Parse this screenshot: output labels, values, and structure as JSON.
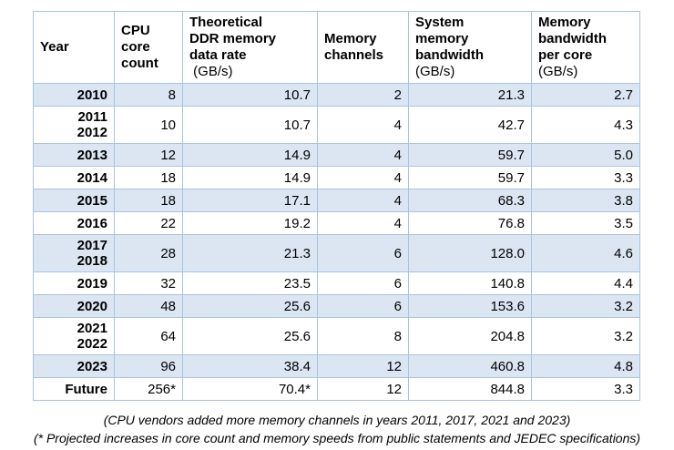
{
  "table": {
    "columns": [
      {
        "key": "year",
        "title": "Year",
        "unit": ""
      },
      {
        "key": "cores",
        "title": "CPU\ncore\ncount",
        "unit": ""
      },
      {
        "key": "rate",
        "title": "Theoretical\nDDR memory\ndata rate",
        "unit": " (GB/s)"
      },
      {
        "key": "channels",
        "title": "Memory\nchannels",
        "unit": ""
      },
      {
        "key": "bandwidth",
        "title": "System\nmemory\nbandwidth",
        "unit": "(GB/s)"
      },
      {
        "key": "per_core",
        "title": "Memory\nbandwidth\nper core",
        "unit": "(GB/s)"
      }
    ],
    "rows": [
      {
        "year": "2010",
        "cores": "8",
        "rate": "10.7",
        "channels": "2",
        "bandwidth": "21.3",
        "per_core": "2.7"
      },
      {
        "year": "2011\n2012",
        "cores": "10",
        "rate": "10.7",
        "channels": "4",
        "bandwidth": "42.7",
        "per_core": "4.3"
      },
      {
        "year": "2013",
        "cores": "12",
        "rate": "14.9",
        "channels": "4",
        "bandwidth": "59.7",
        "per_core": "5.0"
      },
      {
        "year": "2014",
        "cores": "18",
        "rate": "14.9",
        "channels": "4",
        "bandwidth": "59.7",
        "per_core": "3.3"
      },
      {
        "year": "2015",
        "cores": "18",
        "rate": "17.1",
        "channels": "4",
        "bandwidth": "68.3",
        "per_core": "3.8"
      },
      {
        "year": "2016",
        "cores": "22",
        "rate": "19.2",
        "channels": "4",
        "bandwidth": "76.8",
        "per_core": "3.5"
      },
      {
        "year": "2017\n2018",
        "cores": "28",
        "rate": "21.3",
        "channels": "6",
        "bandwidth": "128.0",
        "per_core": "4.6"
      },
      {
        "year": "2019",
        "cores": "32",
        "rate": "23.5",
        "channels": "6",
        "bandwidth": "140.8",
        "per_core": "4.4"
      },
      {
        "year": "2020",
        "cores": "48",
        "rate": "25.6",
        "channels": "6",
        "bandwidth": "153.6",
        "per_core": "3.2"
      },
      {
        "year": "2021\n2022",
        "cores": "64",
        "rate": "25.6",
        "channels": "8",
        "bandwidth": "204.8",
        "per_core": "3.2"
      },
      {
        "year": "2023",
        "cores": "96",
        "rate": "38.4",
        "channels": "12",
        "bandwidth": "460.8",
        "per_core": "4.8"
      },
      {
        "year": "Future",
        "cores": "256*",
        "rate": "70.4*",
        "channels": "12",
        "bandwidth": "844.8",
        "per_core": "3.3"
      }
    ]
  },
  "footnotes": [
    "(CPU vendors added more memory channels in years 2011, 2017, 2021 and 2023)",
    "(* Projected increases in core count and memory speeds from public statements and JEDEC specifications)"
  ],
  "colors": {
    "row_band": "#dce6f2",
    "table_border": "#a9c3e3"
  }
}
